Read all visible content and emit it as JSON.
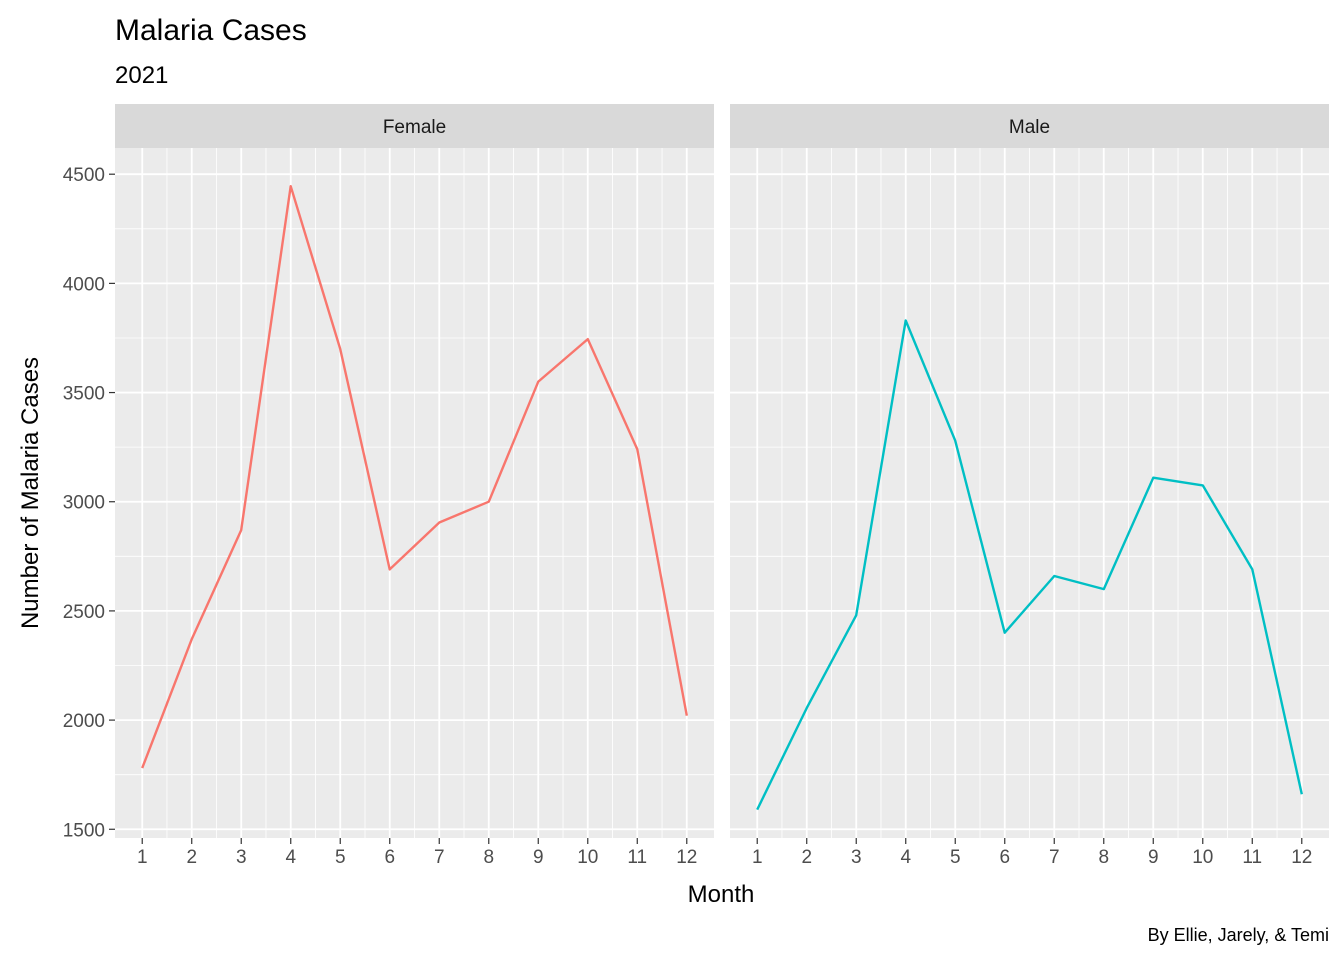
{
  "chart_data": {
    "type": "line",
    "title": "Malaria Cases",
    "subtitle": "2021",
    "xlabel": "Month",
    "ylabel": "Number of Malaria Cases",
    "caption": "By Ellie, Jarely, & Temi",
    "x": [
      1,
      2,
      3,
      4,
      5,
      6,
      7,
      8,
      9,
      10,
      11,
      12
    ],
    "x_ticks": [
      "1",
      "2",
      "3",
      "4",
      "5",
      "6",
      "7",
      "8",
      "9",
      "10",
      "11",
      "12"
    ],
    "y_ticks": [
      "1500",
      "2000",
      "2500",
      "3000",
      "3500",
      "4000",
      "4500"
    ],
    "ylim": [
      1460,
      4620
    ],
    "xlim": [
      0.45,
      12.55
    ],
    "grid": true,
    "legend": "none",
    "panels": [
      {
        "facet_label": "Female",
        "color": "#F8766D",
        "values": [
          1780,
          2370,
          2870,
          4445,
          3700,
          2690,
          2905,
          3000,
          3550,
          3745,
          3240,
          2020
        ]
      },
      {
        "facet_label": "Male",
        "color": "#00BFC4",
        "values": [
          1590,
          2055,
          2480,
          3830,
          3280,
          2400,
          2660,
          2600,
          3110,
          3075,
          2690,
          1660
        ]
      }
    ]
  }
}
